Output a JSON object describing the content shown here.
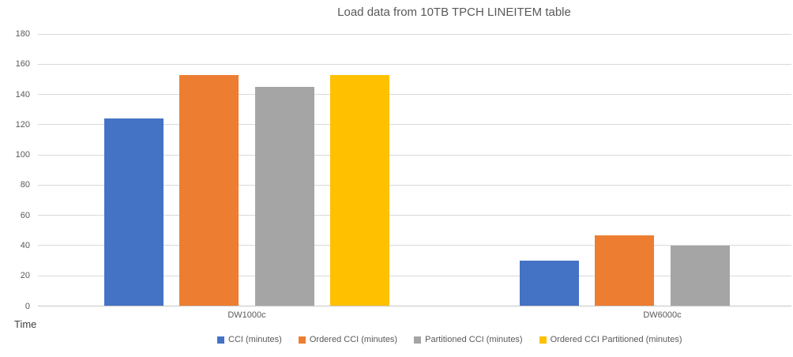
{
  "title": "Load data from 10TB TPCH LINEITEM table",
  "chart_data": {
    "type": "bar",
    "title": "Load data from 10TB TPCH LINEITEM table",
    "categories": [
      "DW1000c",
      "DW6000c"
    ],
    "series": [
      {
        "name": "CCI (minutes)",
        "color": "#4472C4",
        "values": [
          124,
          30
        ]
      },
      {
        "name": "Ordered CCI (minutes)",
        "color": "#ED7D31",
        "values": [
          153,
          47
        ]
      },
      {
        "name": "Partitioned CCI (minutes)",
        "color": "#A5A5A5",
        "values": [
          145,
          40
        ]
      },
      {
        "name": "Ordered CCI Partitioned (minutes)",
        "color": "#FFC000",
        "values": [
          153,
          0
        ]
      }
    ],
    "xlabel": "",
    "ylabel": "Time",
    "ylim": [
      0,
      180
    ],
    "yticks": [
      0,
      20,
      40,
      60,
      80,
      100,
      120,
      140,
      160,
      180
    ],
    "grid": true,
    "legend_position": "bottom"
  },
  "colors": {
    "title_text": "#595959",
    "tick_text": "#595959",
    "axis_title_text": "#404040",
    "gridline": "#D9D9D9",
    "axis_line": "#C6C6C6",
    "background": "#FFFFFF"
  }
}
